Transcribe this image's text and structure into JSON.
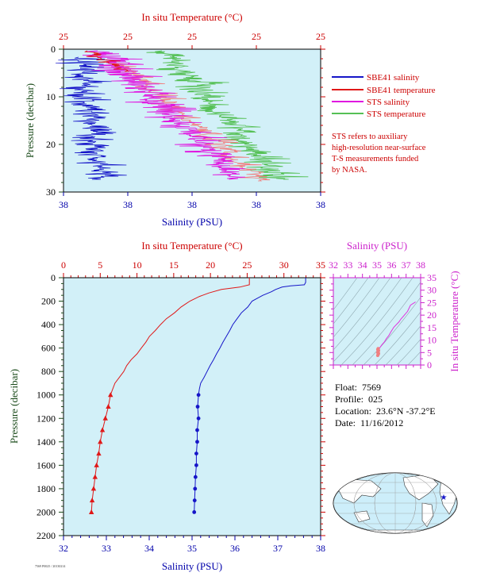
{
  "colors": {
    "panel_bg": "#d2f0f8",
    "temperature_axis": "#cc0000",
    "salinity_axis": "#0000aa",
    "pressure_axis": "#1a4a1a",
    "sbe_salinity": "#1515c8",
    "sbe_temperature": "#e01818",
    "sts_salinity": "#e018e0",
    "sts_temperature": "#55c055",
    "sts_temperature_overlap": "#f08080",
    "ts_axis": "#cc22cc"
  },
  "legend": {
    "items": [
      {
        "label": "SBE41 salinity",
        "color": "#1515c8"
      },
      {
        "label": "SBE41 temperature",
        "color": "#e01818"
      },
      {
        "label": "STS salinity",
        "color": "#e018e0"
      },
      {
        "label": "STS temperature",
        "color": "#55c055"
      }
    ],
    "note": [
      "STS refers to auxiliary",
      "high-resolution near-surface",
      "T-S measurements funded",
      "by NASA."
    ]
  },
  "info": {
    "float_label": "Float:",
    "float_value": "7569",
    "profile_label": "Profile:",
    "profile_value": "025",
    "location_label": "Location:",
    "location_value": "23.6°N  -37.2°E",
    "date_label": "Date:",
    "date_value": "11/16/2012"
  },
  "footer_tag": "7569 P0025 / 20130214",
  "map": {
    "marker": "blue-star",
    "lat": 23.6,
    "lon": -37.2
  },
  "chart_data": [
    {
      "id": "near-surface",
      "type": "line",
      "top_axis_label": "In situ Temperature (°C)",
      "top_ticks": [
        "25",
        "25",
        "25",
        "25",
        "25"
      ],
      "bottom_axis_label": "Salinity (PSU)",
      "bottom_ticks": [
        "38",
        "38",
        "38",
        "38",
        "38"
      ],
      "left_axis_label": "Pressure (decibar)",
      "left_ticks": [
        "0",
        "10",
        "20",
        "30"
      ],
      "ylim": [
        30,
        0
      ],
      "series": [
        {
          "name": "SBE41 salinity",
          "color": "#1515c8"
        },
        {
          "name": "SBE41 temperature",
          "color": "#e01818"
        },
        {
          "name": "STS salinity",
          "color": "#e018e0"
        },
        {
          "name": "STS temperature",
          "color": "#55c055"
        }
      ]
    },
    {
      "id": "full-profile",
      "type": "line",
      "top_axis_label": "In situ Temperature (°C)",
      "top_ticks": [
        "0",
        "5",
        "10",
        "15",
        "20",
        "25",
        "30",
        "35"
      ],
      "temperature_range": [
        0,
        35
      ],
      "bottom_axis_label": "Salinity (PSU)",
      "bottom_ticks": [
        "32",
        "33",
        "34",
        "35",
        "36",
        "37",
        "38"
      ],
      "salinity_range": [
        32,
        38
      ],
      "left_axis_label": "Pressure (decibar)",
      "left_ticks": [
        "0",
        "200",
        "400",
        "600",
        "800",
        "1000",
        "1200",
        "1400",
        "1600",
        "1800",
        "2000",
        "2200"
      ],
      "pressure_range": [
        2200,
        0
      ],
      "series": [
        {
          "name": "SBE41 temperature",
          "color": "#e01818",
          "pressure": [
            0,
            5,
            60,
            80,
            100,
            130,
            160,
            200,
            250,
            300,
            350,
            400,
            450,
            500,
            550,
            600,
            650,
            700,
            750,
            800,
            900,
            1000,
            1100,
            1200,
            1300,
            1400,
            1500,
            1600,
            1700,
            1800,
            1900,
            2000
          ],
          "temperature": [
            25.3,
            25.3,
            25.3,
            24.0,
            21.5,
            19.8,
            18.5,
            17.2,
            16.0,
            15.1,
            14.0,
            13.2,
            12.5,
            11.7,
            11.2,
            10.6,
            10.0,
            9.2,
            8.6,
            8.2,
            7.0,
            6.4,
            6.1,
            5.7,
            5.3,
            5.0,
            4.8,
            4.5,
            4.3,
            4.1,
            3.9,
            3.8
          ]
        },
        {
          "name": "SBE41 salinity",
          "color": "#1515c8",
          "pressure": [
            0,
            40,
            60,
            70,
            80,
            100,
            120,
            150,
            180,
            200,
            250,
            300,
            350,
            400,
            450,
            500,
            550,
            600,
            650,
            700,
            750,
            800,
            850,
            900,
            950,
            1000,
            1100,
            1200,
            1300,
            1400,
            1500,
            1600,
            1700,
            1800,
            1900,
            2000
          ],
          "salinity": [
            37.65,
            37.65,
            37.62,
            37.3,
            37.1,
            36.95,
            36.85,
            36.65,
            36.5,
            36.4,
            36.3,
            36.15,
            36.05,
            35.95,
            35.88,
            35.8,
            35.72,
            35.65,
            35.57,
            35.5,
            35.42,
            35.35,
            35.28,
            35.2,
            35.17,
            35.15,
            35.13,
            35.15,
            35.12,
            35.12,
            35.1,
            35.1,
            35.08,
            35.07,
            35.06,
            35.05
          ]
        }
      ]
    },
    {
      "id": "ts-diagram",
      "type": "line",
      "top_axis_label": "Salinity (PSU)",
      "top_ticks": [
        "32",
        "33",
        "34",
        "35",
        "36",
        "37",
        "38"
      ],
      "salinity_range": [
        32,
        38
      ],
      "right_axis_label": "In situ Temperature (°C)",
      "right_ticks": [
        "0",
        "5",
        "10",
        "15",
        "20",
        "25",
        "30",
        "35"
      ],
      "temperature_range": [
        0,
        35
      ],
      "series": [
        {
          "name": "SBE41 T-S",
          "color": "#dd33dd",
          "salinity": [
            35.05,
            35.08,
            35.1,
            35.12,
            35.15,
            35.2,
            35.35,
            35.5,
            35.65,
            35.8,
            35.95,
            36.15,
            36.3,
            36.5,
            36.65,
            36.85,
            37.1,
            37.3,
            37.65
          ],
          "temperature": [
            3.8,
            4.3,
            5.0,
            5.7,
            6.4,
            7.0,
            8.2,
            9.2,
            10.6,
            11.7,
            13.2,
            15.1,
            16.0,
            17.2,
            18.5,
            19.8,
            21.5,
            24.0,
            25.3
          ]
        }
      ]
    }
  ]
}
